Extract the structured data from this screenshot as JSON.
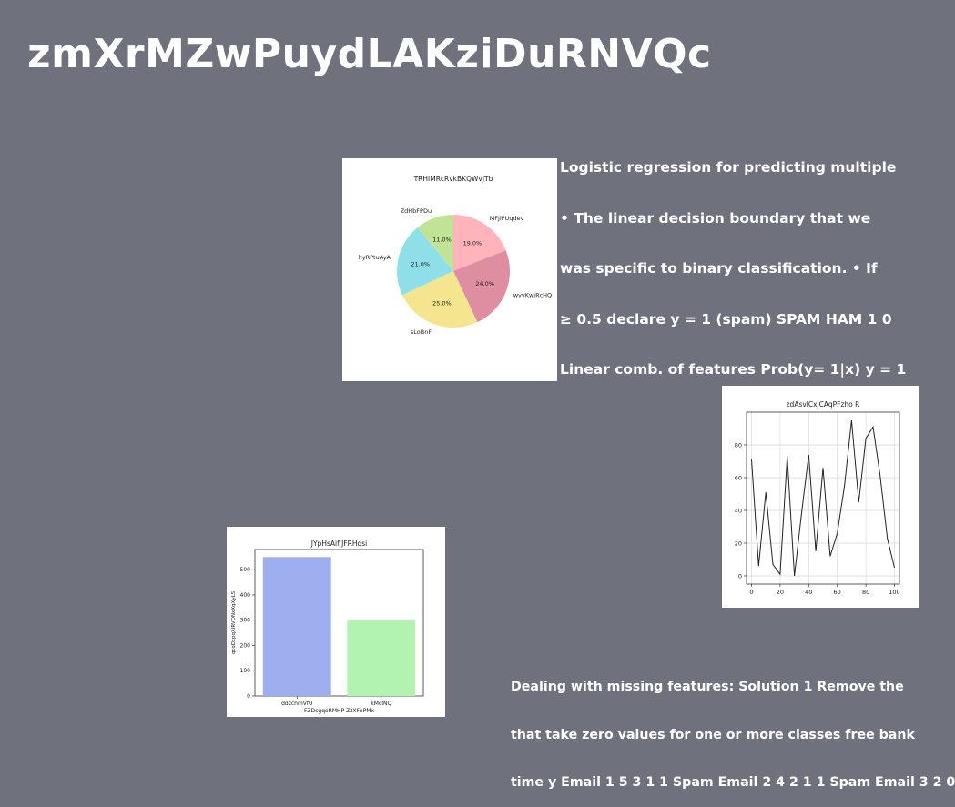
{
  "slide": {
    "title": "zmXrMZwPuydLAKziDuRNVQc",
    "text_block_1": [
      "Logistic regression for predicting multiple",
      "• The linear decision boundary that we",
      "was specific to binary classification. • If",
      "≥ 0.5 declare y = 1 (spam) SPAM HAM 1 0",
      "Linear comb. of features Prob(y= 1|x) y = 1"
    ],
    "text_block_2": [
      "Dealing with missing features: Solution 1 Remove the",
      "that take zero values for one or more classes free bank",
      "time y Email 1 5 3 1 1 Spam Email 2 4 2 1 1 Spam Email 3 2 0"
    ]
  },
  "chart_data": [
    {
      "type": "pie",
      "title": "TRHIMRcRvkBKQWvJTb",
      "labels": [
        "MFJlPUqdev",
        "wvvKwiRcHQ",
        "sLoBnF",
        "hyRPtuAyA",
        "ZdHbFPDu"
      ],
      "values": [
        19.0,
        24.0,
        25.0,
        21.0,
        11.0
      ],
      "value_labels": [
        "19.0%",
        "24.0%",
        "25.0%",
        "21.0%",
        "11.0%"
      ],
      "colors": [
        "#ffb3ba",
        "#de8ea0",
        "#f5e58f",
        "#8fdfe8",
        "#c1e396"
      ]
    },
    {
      "type": "line",
      "title": "zdAsvlCxjCAqPFzho R",
      "x": [
        0,
        5,
        10,
        15,
        20,
        25,
        30,
        35,
        40,
        45,
        50,
        55,
        60,
        65,
        70,
        75,
        80,
        85,
        90,
        95,
        100
      ],
      "y": [
        71,
        6,
        51,
        7,
        1,
        73,
        0,
        38,
        74,
        15,
        66,
        12,
        26,
        55,
        95,
        45,
        84,
        91,
        61,
        23,
        5
      ],
      "xticks": [
        0,
        20,
        40,
        60,
        80,
        100
      ],
      "yticks": [
        0,
        20,
        40,
        60,
        80
      ],
      "xlim": [
        -3.5,
        103.5
      ],
      "ylim": [
        -5,
        100
      ],
      "grid": true,
      "color": "#222222"
    },
    {
      "type": "bar",
      "title": "JYpHsAif JFRHqsi",
      "categories": [
        "ddzchmVfU",
        "kMcINQ"
      ],
      "values": [
        550,
        300
      ],
      "colors": [
        "#9dafee",
        "#b3f3b0"
      ],
      "xlabel": "FZDcgqoRMHP ZzXFnPMx",
      "ylabel": "qcoDcpqXIRVONxXqXyLS",
      "yticks": [
        0,
        100,
        200,
        300,
        400,
        500
      ],
      "ylim": [
        0,
        580
      ]
    }
  ]
}
